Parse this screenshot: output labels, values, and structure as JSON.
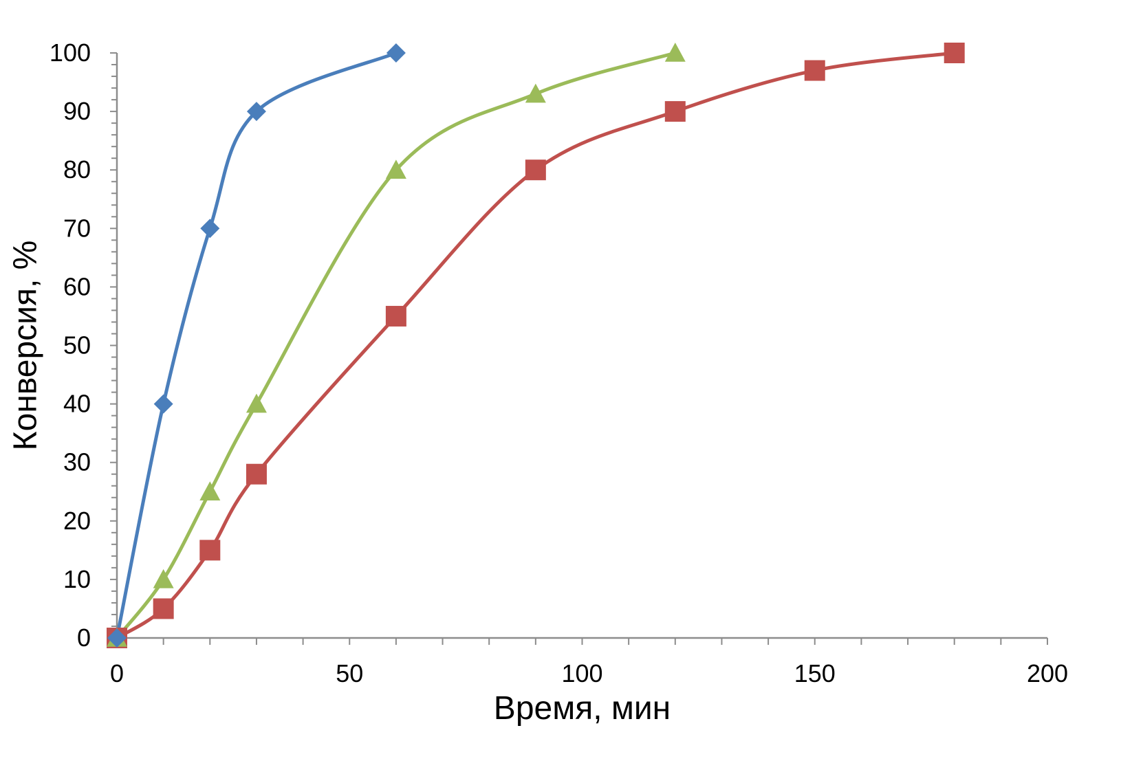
{
  "chart_data": {
    "type": "line",
    "title": "",
    "xlabel": "Время, мин",
    "ylabel": "Конверсия, %",
    "xlim": [
      0,
      200
    ],
    "ylim": [
      0,
      100
    ],
    "x_ticks": [
      0,
      50,
      100,
      150,
      200
    ],
    "x_ticks_labels": [
      "0",
      "50",
      "100",
      "150",
      "200"
    ],
    "x_minor_step": 10,
    "y_ticks": [
      0,
      10,
      20,
      30,
      40,
      50,
      60,
      70,
      80,
      90,
      100
    ],
    "y_ticks_labels": [
      "0",
      "10",
      "20",
      "30",
      "40",
      "50",
      "60",
      "70",
      "80",
      "90",
      "100"
    ],
    "y_minor_step": 2,
    "grid": false,
    "legend": "none",
    "smooth": true,
    "series": [
      {
        "name": "series-1",
        "color": "#4a7ebb",
        "marker": "diamond",
        "x": [
          0,
          10,
          20,
          30,
          60
        ],
        "values": [
          0,
          40,
          70,
          90,
          100
        ]
      },
      {
        "name": "series-2",
        "color": "#9bbb59",
        "marker": "triangle",
        "x": [
          0,
          10,
          20,
          30,
          60,
          90,
          120
        ],
        "values": [
          0,
          10,
          25,
          40,
          80,
          93,
          100
        ]
      },
      {
        "name": "series-3",
        "color": "#c0504d",
        "marker": "square",
        "x": [
          0,
          10,
          20,
          30,
          60,
          90,
          120,
          150,
          180
        ],
        "values": [
          0,
          5,
          15,
          28,
          55,
          80,
          90,
          97,
          100
        ]
      }
    ]
  }
}
